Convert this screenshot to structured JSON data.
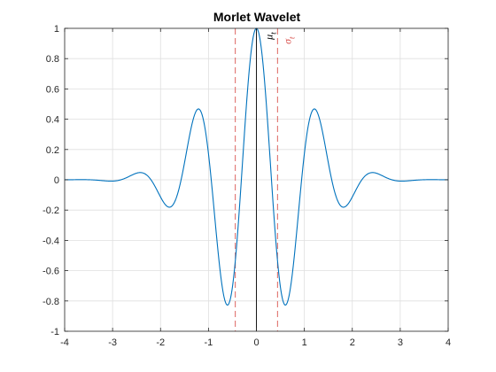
{
  "chart_data": {
    "type": "line",
    "title": "Morlet Wavelet",
    "xlabel": "",
    "ylabel": "",
    "xlim": [
      -4,
      4
    ],
    "ylim": [
      -1,
      1
    ],
    "grid": true,
    "xticks": [
      -4,
      -3,
      -2,
      -1,
      0,
      1,
      2,
      3,
      4
    ],
    "xtick_labels": [
      "-4",
      "-3",
      "-2",
      "-1",
      "0",
      "1",
      "2",
      "3",
      "4"
    ],
    "yticks": [
      -1,
      -0.8,
      -0.6,
      -0.4,
      -0.2,
      0,
      0.2,
      0.4,
      0.6,
      0.8,
      1
    ],
    "ytick_labels": [
      "-1",
      "-0.8",
      "-0.6",
      "-0.4",
      "-0.2",
      "0",
      "0.2",
      "0.4",
      "0.6",
      "0.8",
      "1"
    ],
    "series": [
      {
        "color": "#0072BD",
        "function": "exp(-x^2/2)*cos(5x)",
        "x_range": [
          -4,
          4
        ]
      }
    ],
    "reference_lines": [
      {
        "type": "vertical",
        "x": 0,
        "style": "solid",
        "color": "#000000"
      },
      {
        "type": "vertical",
        "x": -0.44,
        "style": "dashed",
        "color": "#D9534F"
      },
      {
        "type": "vertical",
        "x": 0.44,
        "style": "dashed",
        "color": "#D9534F"
      }
    ],
    "annotations": [
      {
        "text": "μ",
        "subscript": "t",
        "x": 0.33,
        "y": 0.95,
        "color": "#000000",
        "rotation": -90
      },
      {
        "text": "σ",
        "subscript": "t",
        "x": 0.72,
        "y": 0.92,
        "color": "#D9534F",
        "rotation": -90
      }
    ]
  }
}
